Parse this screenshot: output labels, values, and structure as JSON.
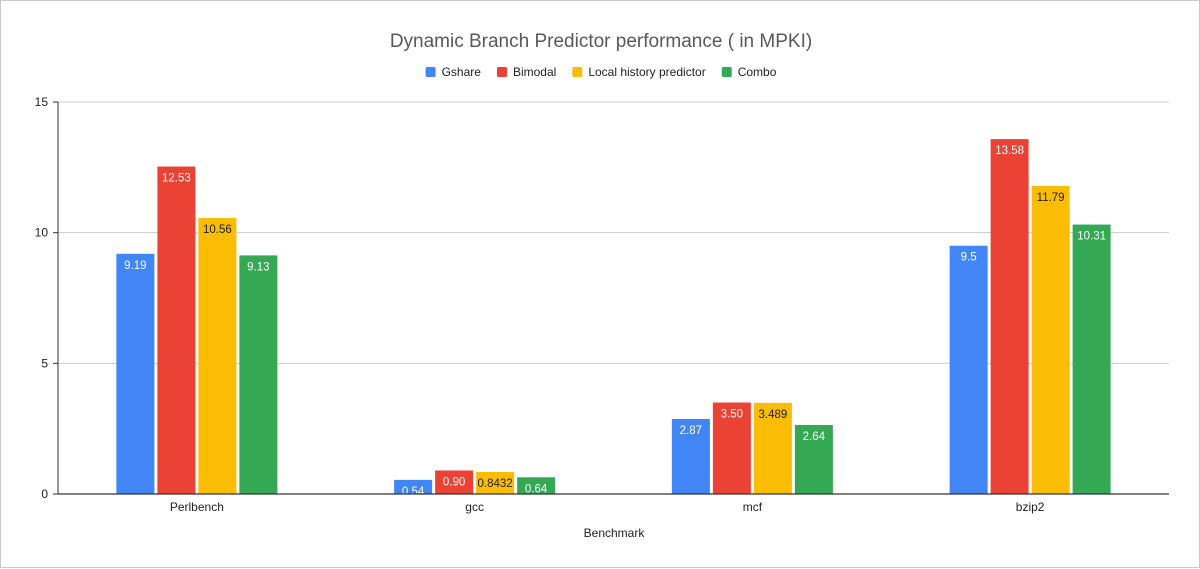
{
  "chart_data": {
    "type": "bar",
    "title": "Dynamic Branch Predictor performance ( in MPKI)",
    "xlabel": "Benchmark",
    "ylabel": "",
    "ylim": [
      0,
      15
    ],
    "yticks": [
      0,
      5,
      10,
      15
    ],
    "grid": true,
    "legend_position": "top",
    "categories": [
      "Perlbench",
      "gcc",
      "mcf",
      "bzip2"
    ],
    "series": [
      {
        "name": "Gshare",
        "color": "#4285f4",
        "label_color": "#ffffff",
        "values": [
          9.19,
          0.54,
          2.87,
          9.5
        ],
        "data_labels": [
          "9.19",
          "0.54",
          "2.87",
          "9.5"
        ]
      },
      {
        "name": "Bimodal",
        "color": "#ea4335",
        "label_color": "#ffffff",
        "values": [
          12.53,
          0.9,
          3.5,
          13.58
        ],
        "data_labels": [
          "12.53",
          "0.90",
          "3.50",
          "13.58"
        ]
      },
      {
        "name": "Local history predictor",
        "color": "#fbbc04",
        "label_color": "#222222",
        "values": [
          10.56,
          0.8432,
          3.489,
          11.79
        ],
        "data_labels": [
          "10.56",
          "0.8432",
          "3.489",
          "11.79"
        ]
      },
      {
        "name": "Combo",
        "color": "#34a853",
        "label_color": "#ffffff",
        "values": [
          9.13,
          0.64,
          2.64,
          10.31
        ],
        "data_labels": [
          "9.13",
          "0.64",
          "2.64",
          "10.31"
        ]
      }
    ]
  }
}
